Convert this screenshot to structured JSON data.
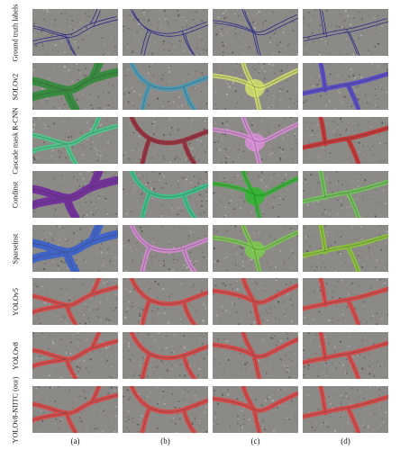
{
  "rows": [
    {
      "label": "Ground truth labels",
      "mode": "lines"
    },
    {
      "label": "SOLOv2",
      "mode": "mask"
    },
    {
      "label": "Cascade mask R-CNN",
      "mode": "mask"
    },
    {
      "label": "Condinst",
      "mode": "mask"
    },
    {
      "label": "Sparseinst",
      "mode": "mask"
    },
    {
      "label": "YOLOv5",
      "mode": "mask"
    },
    {
      "label": "YOLOv8",
      "mode": "mask"
    },
    {
      "label": "YOLOv8-NIITC (our)",
      "mode": "mask"
    }
  ],
  "columns": [
    "(a)",
    "(b)",
    "(c)",
    "(d)"
  ],
  "mask_colors": [
    [
      "#1f8a2a",
      "#3a9ec0",
      "#d6e86a",
      "#4a3ad8"
    ],
    [
      "#3fd68a",
      "#9a1a2a",
      "#e090e0",
      "#d42020"
    ],
    [
      "#6a1aa0",
      "#2ad08a",
      "#2ab82a",
      "#6ad050"
    ],
    [
      "#2a5ad8",
      "#e08ae0",
      "#7ad04a",
      "#8ad02a"
    ],
    [
      "#e83a3a",
      "#e83a3a",
      "#e83a3a",
      "#e83a3a"
    ],
    [
      "#e83a3a",
      "#e83a3a",
      "#e83a3a",
      "#e83a3a"
    ],
    [
      "#e83a3a",
      "#e83a3a",
      "#e83a3a",
      "#e83a3a"
    ]
  ],
  "line_color": "#2a2a8a"
}
